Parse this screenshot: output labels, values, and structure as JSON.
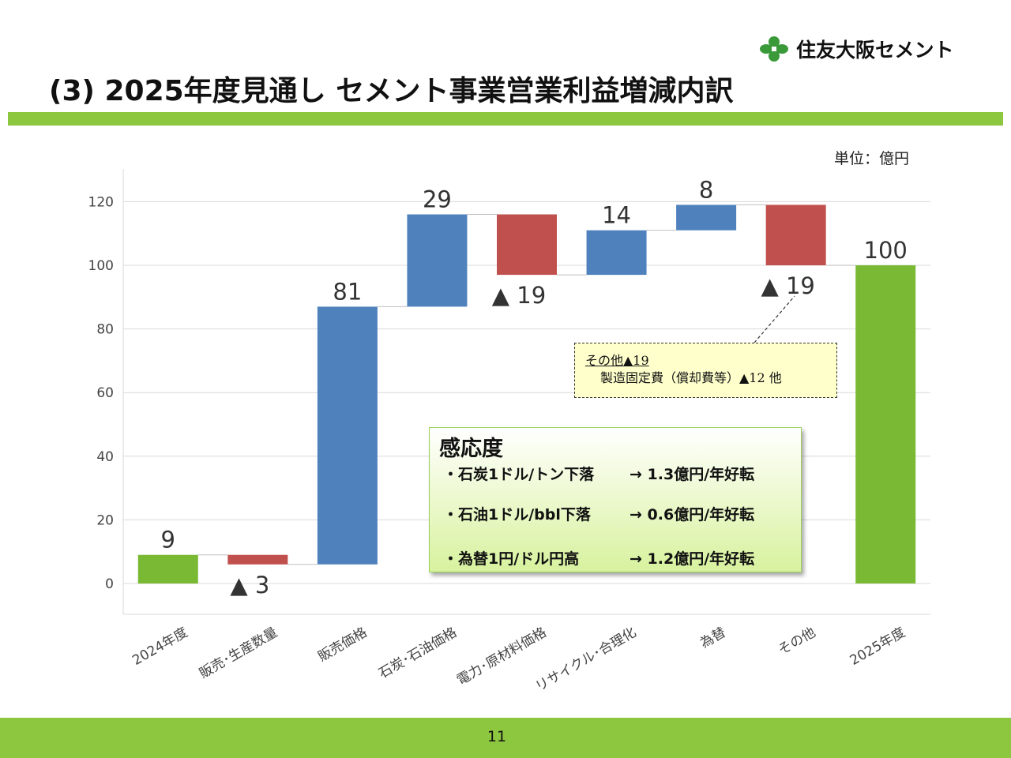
{
  "logo": {
    "brand": "住友大阪セメント",
    "icon": "company-logo-icon",
    "color": "#3a9a3a"
  },
  "title": "(3) 2025年度見通し セメント事業営業利益増減内訳",
  "unit": "単位：億円",
  "colors": {
    "accent_green": "#8dc63f",
    "bar_green": "#7ab934",
    "increase_blue": "#4f81bd",
    "decrease_red": "#c0504d"
  },
  "chart_data": {
    "type": "bar",
    "subtype": "waterfall",
    "categories": [
      "2024年度",
      "販売･生産数量",
      "販売価格",
      "石炭･石油価格",
      "電力･原材料価格",
      "リサイクル･合理化",
      "為替",
      "その他",
      "2025年度"
    ],
    "steps": [
      {
        "kind": "total",
        "value": 9,
        "label": "9"
      },
      {
        "kind": "decrease",
        "value": -3,
        "label": "▲ 3"
      },
      {
        "kind": "increase",
        "value": 81,
        "label": "81"
      },
      {
        "kind": "increase",
        "value": 29,
        "label": "29"
      },
      {
        "kind": "decrease",
        "value": -19,
        "label": "▲ 19"
      },
      {
        "kind": "increase",
        "value": 14,
        "label": "14"
      },
      {
        "kind": "increase",
        "value": 8,
        "label": "8"
      },
      {
        "kind": "decrease",
        "value": -19,
        "label": "▲ 19"
      },
      {
        "kind": "total",
        "value": 100,
        "label": "100"
      }
    ],
    "ylim": [
      -10,
      130
    ],
    "yticks": [
      0,
      20,
      40,
      60,
      80,
      100,
      120
    ],
    "grid": true,
    "legend": "none"
  },
  "callout": {
    "line1": "その他▲19",
    "line2": "製造固定費（償却費等）▲12 他"
  },
  "sensitivity": {
    "heading": "感応度",
    "items": [
      {
        "lhs": "・石炭1ドル/トン下落",
        "rhs": "→ 1.3億円/年好転"
      },
      {
        "lhs": "・石油1ドル/bbl下落",
        "rhs": "→ 0.6億円/年好転"
      },
      {
        "lhs": "・為替1円/ドル円高",
        "rhs": "→ 1.2億円/年好転"
      }
    ]
  },
  "page_number": "11"
}
